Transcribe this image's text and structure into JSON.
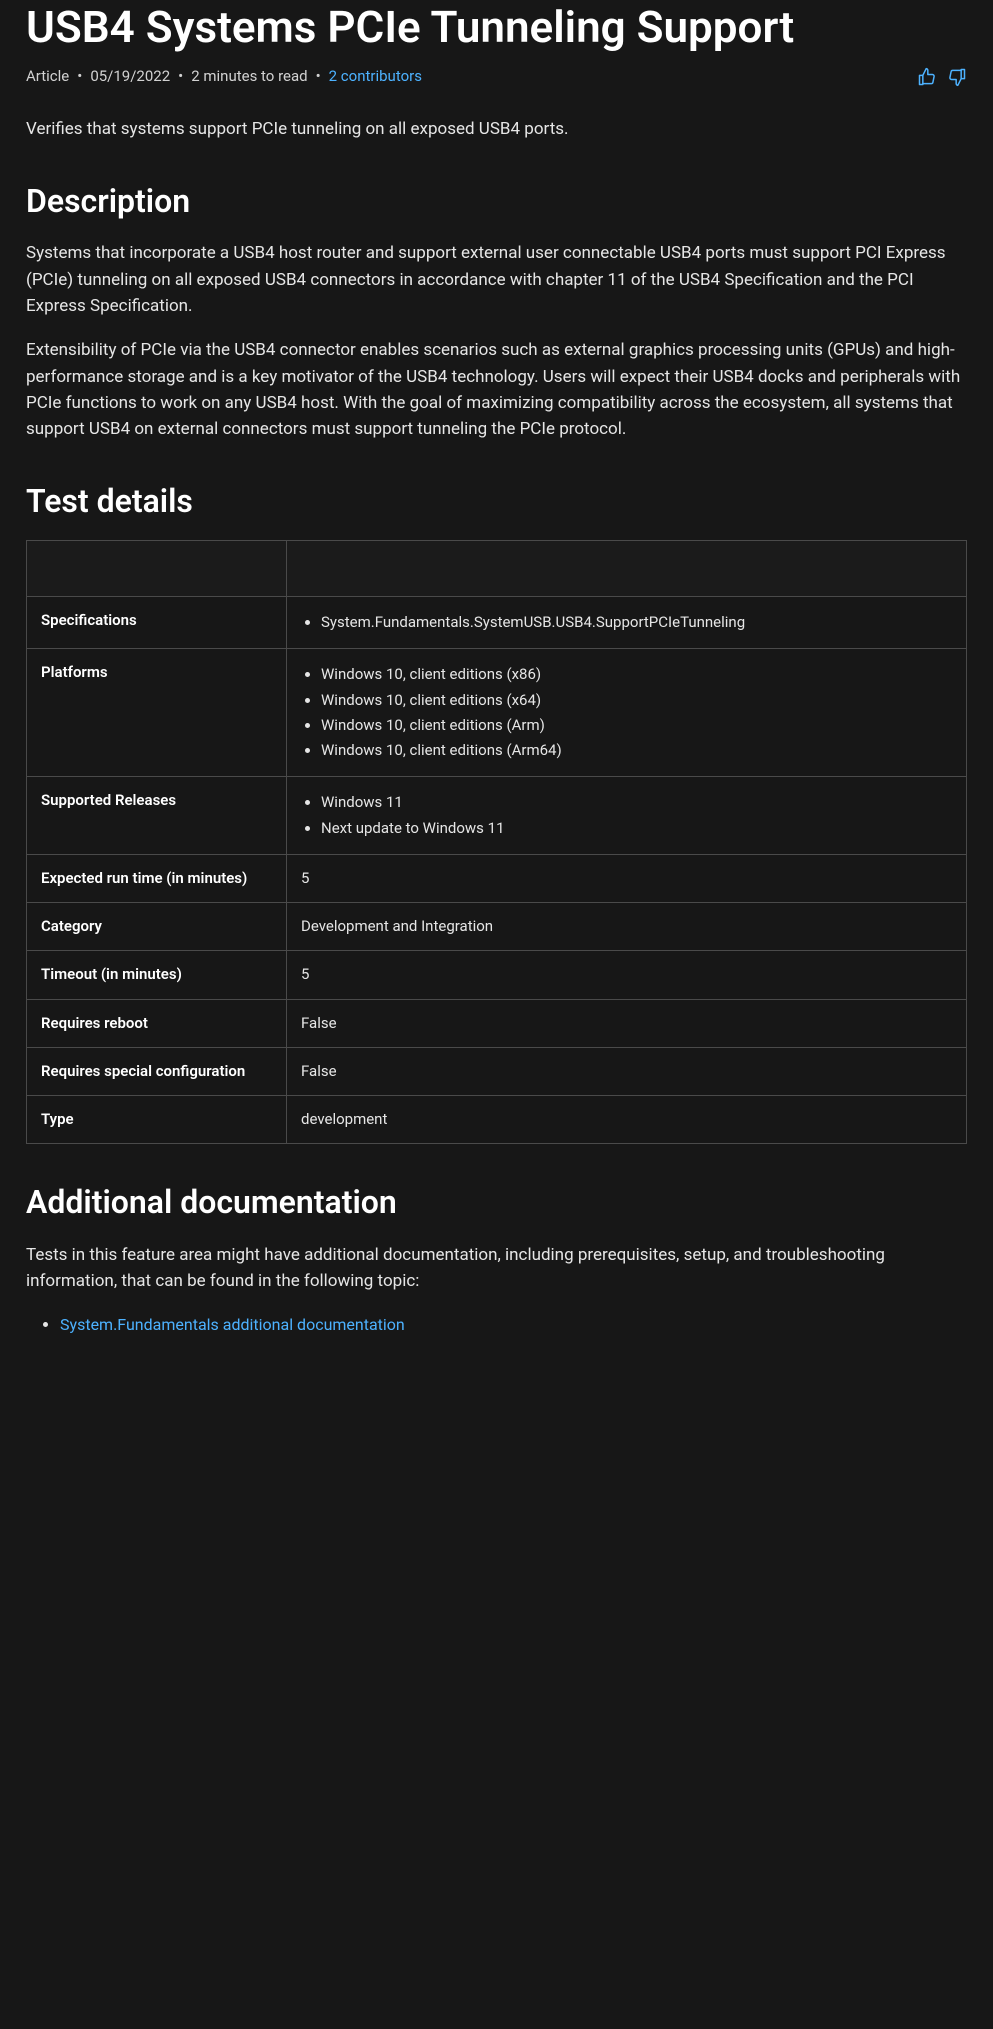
{
  "title": "USB4 Systems PCIe Tunneling Support",
  "meta": {
    "type": "Article",
    "date": "05/19/2022",
    "read_time": "2 minutes to read",
    "contributors": "2 contributors"
  },
  "intro": "Verifies that systems support PCIe tunneling on all exposed USB4 ports.",
  "headings": {
    "description": "Description",
    "test_details": "Test details",
    "additional_docs": "Additional documentation"
  },
  "description": {
    "p1": "Systems that incorporate a USB4 host router and support external user connectable USB4 ports must support PCI Express (PCIe) tunneling on all exposed USB4 connectors in accordance with chapter 11 of the USB4 Specification and the PCI Express Specification.",
    "p2": "Extensibility of PCIe via the USB4 connector enables scenarios such as external graphics processing units (GPUs) and high-performance storage and is a key motivator of the USB4 technology. Users will expect their USB4 docks and peripherals with PCIe functions to work on any USB4 host. With the goal of maximizing compatibility across the ecosystem, all systems that support USB4 on external connectors must support tunneling the PCIe protocol."
  },
  "test_details_table": [
    {
      "label": "Specifications",
      "list": [
        "System.Fundamentals.SystemUSB.USB4.SupportPCIeTunneling"
      ]
    },
    {
      "label": "Platforms",
      "list": [
        "Windows 10, client editions (x86)",
        "Windows 10, client editions (x64)",
        "Windows 10, client editions (Arm)",
        "Windows 10, client editions (Arm64)"
      ]
    },
    {
      "label": "Supported Releases",
      "list": [
        "Windows 11",
        "Next update to Windows 11"
      ]
    },
    {
      "label": "Expected run time (in minutes)",
      "value": "5"
    },
    {
      "label": "Category",
      "value": "Development and Integration"
    },
    {
      "label": "Timeout (in minutes)",
      "value": "5"
    },
    {
      "label": "Requires reboot",
      "value": "False"
    },
    {
      "label": "Requires special configuration",
      "value": "False"
    },
    {
      "label": "Type",
      "value": "development"
    }
  ],
  "additional_docs": {
    "p1": "Tests in this feature area might have additional documentation, including prerequisites, setup, and troubleshooting information, that can be found in the following topic:",
    "links": [
      "System.Fundamentals additional documentation"
    ]
  },
  "colors": {
    "background": "#171717",
    "text": "#e6e6e6",
    "heading": "#ffffff",
    "link": "#4db2ff",
    "border": "#4a4a4a"
  }
}
